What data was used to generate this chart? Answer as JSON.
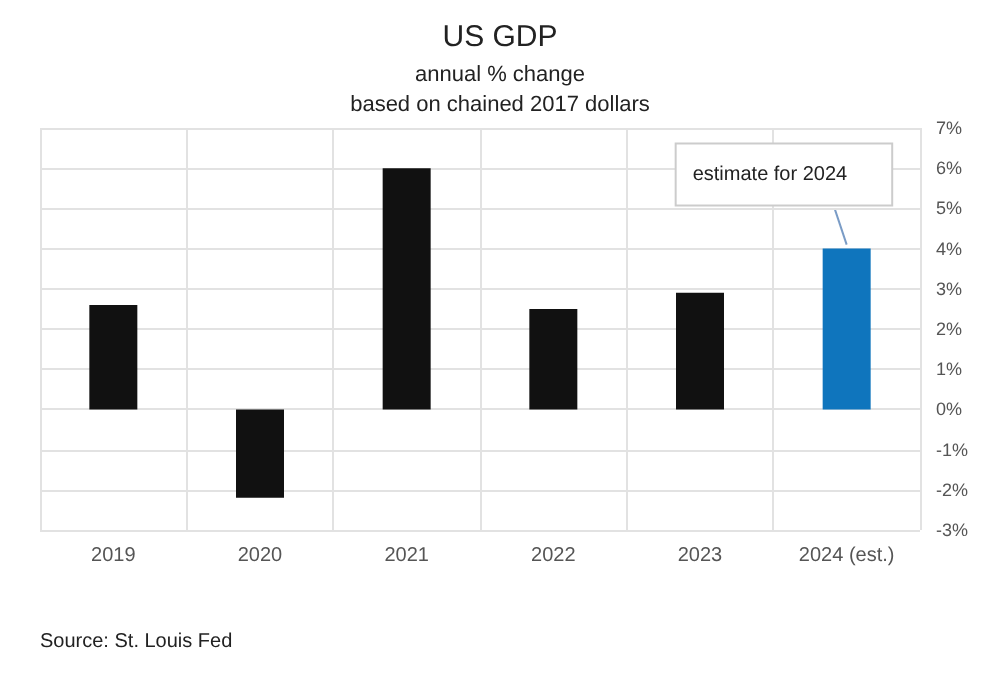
{
  "chart_data": {
    "type": "bar",
    "title": "US GDP",
    "subtitle": "annual % change\nbased on chained 2017 dollars",
    "categories": [
      "2019",
      "2020",
      "2021",
      "2022",
      "2023",
      "2024 (est.)"
    ],
    "values": [
      2.6,
      -2.2,
      6.0,
      2.5,
      2.9,
      4.0
    ],
    "colors": [
      "#111111",
      "#111111",
      "#111111",
      "#111111",
      "#111111",
      "#0f75bd"
    ],
    "ylim": [
      -3,
      7
    ],
    "yticks": [
      {
        "value": -3,
        "label": "-3%"
      },
      {
        "value": -2,
        "label": "-2%"
      },
      {
        "value": -1,
        "label": "-1%"
      },
      {
        "value": 0,
        "label": "0%"
      },
      {
        "value": 1,
        "label": "1%"
      },
      {
        "value": 2,
        "label": "2%"
      },
      {
        "value": 3,
        "label": "3%"
      },
      {
        "value": 4,
        "label": "4%"
      },
      {
        "value": 5,
        "label": "5%"
      },
      {
        "value": 6,
        "label": "6%"
      },
      {
        "value": 7,
        "label": "7%"
      }
    ],
    "grid": true,
    "annotations": [
      {
        "text": "estimate for 2024",
        "x": "2024 (est.)",
        "y": 4.0
      },
      "Source: St. Louis Fed"
    ]
  }
}
